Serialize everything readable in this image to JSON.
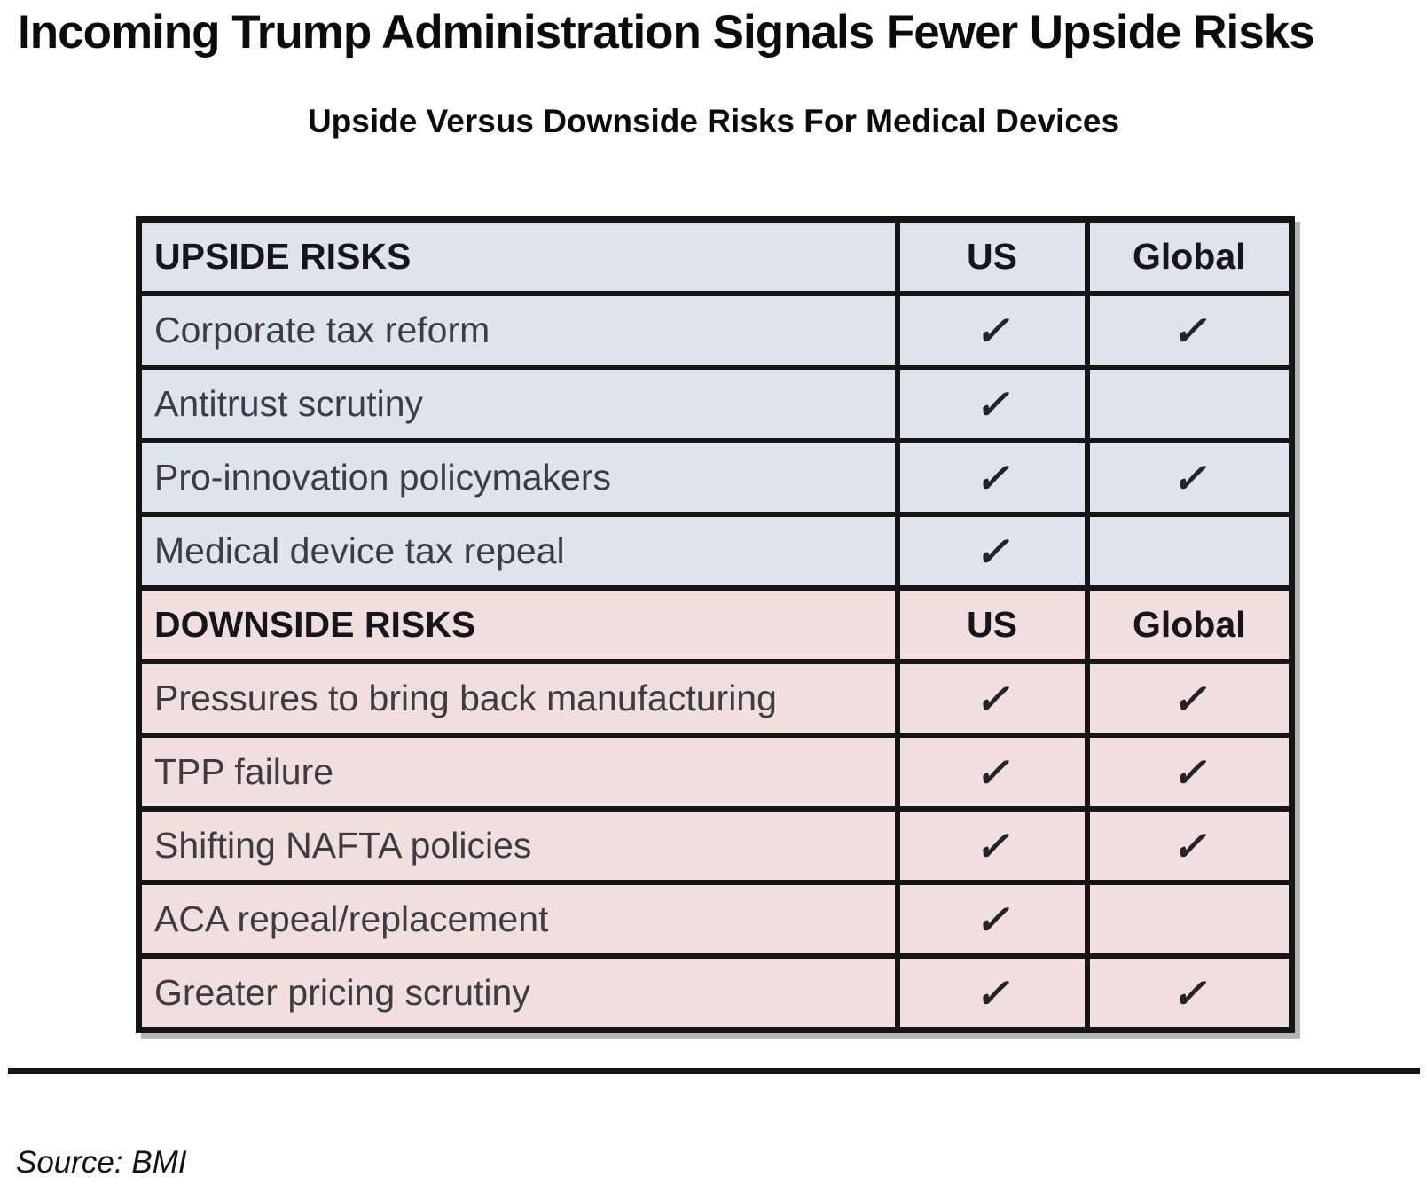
{
  "header": {
    "title": "Incoming Trump Administration Signals Fewer Upside Risks",
    "subtitle": "Upside Versus Downside Risks For Medical Devices"
  },
  "footer": {
    "source": "Source: BMI"
  },
  "colors": {
    "upside_bg": "#dde4ee",
    "downside_bg": "#f1dfde",
    "grid_border": "#151515",
    "check": "#23232b"
  },
  "chart_data": {
    "type": "table",
    "title": "Upside Versus Downside Risks For Medical Devices",
    "columns": [
      "Risk",
      "US",
      "Global"
    ],
    "check_glyph": "✓",
    "sections": [
      {
        "id": "upside",
        "header_label": "UPSIDE RISKS",
        "col_us": "US",
        "col_global": "Global",
        "bg": "#dde4ee",
        "rows": [
          {
            "label": "Corporate tax reform",
            "us": true,
            "global": true
          },
          {
            "label": "Antitrust scrutiny",
            "us": true,
            "global": false
          },
          {
            "label": "Pro-innovation policymakers",
            "us": true,
            "global": true
          },
          {
            "label": "Medical device tax repeal",
            "us": true,
            "global": false
          }
        ]
      },
      {
        "id": "downside",
        "header_label": "DOWNSIDE RISKS",
        "col_us": "US",
        "col_global": "Global",
        "bg": "#f1dfde",
        "rows": [
          {
            "label": "Pressures to bring back manufacturing",
            "us": true,
            "global": true
          },
          {
            "label": "TPP failure",
            "us": true,
            "global": true
          },
          {
            "label": "Shifting NAFTA policies",
            "us": true,
            "global": true
          },
          {
            "label": "ACA repeal/replacement",
            "us": true,
            "global": false
          },
          {
            "label": "Greater pricing scrutiny",
            "us": true,
            "global": true
          }
        ]
      }
    ]
  }
}
